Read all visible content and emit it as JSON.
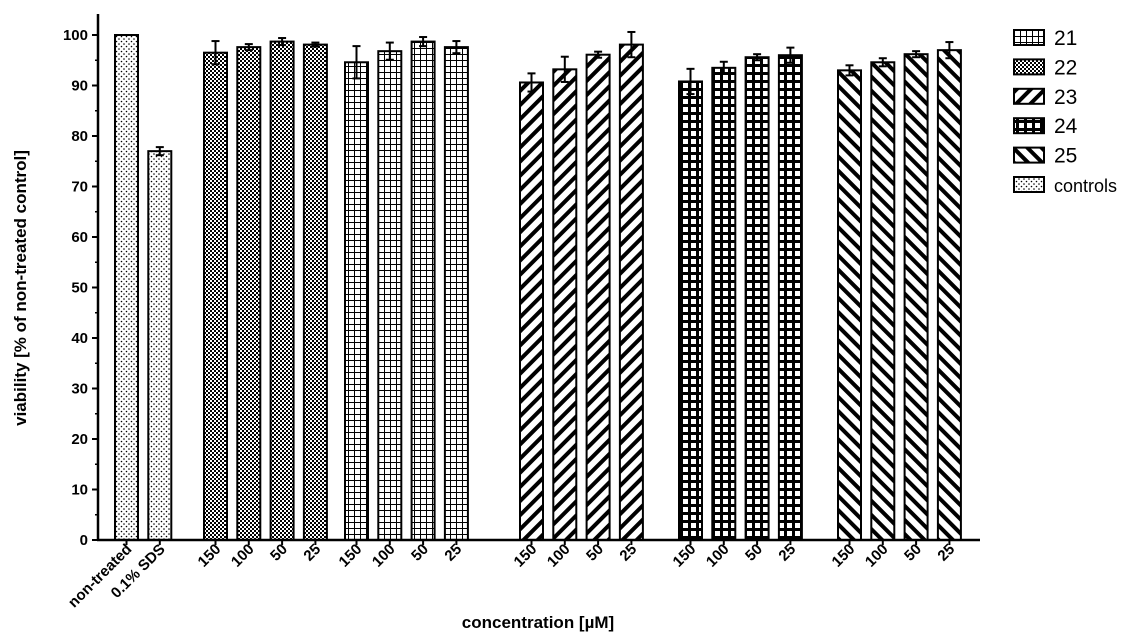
{
  "chart_data": {
    "type": "bar",
    "xlabel": "concentration [µM]",
    "ylabel": "viability [% of non-treated control]",
    "ylim": [
      0,
      105
    ],
    "yticks": [
      0,
      10,
      20,
      30,
      40,
      50,
      60,
      70,
      80,
      90,
      100
    ],
    "grid": false,
    "legend_position": "top-right",
    "legend": [
      {
        "name": "21",
        "pattern": "grid-fine"
      },
      {
        "name": "22",
        "pattern": "checker"
      },
      {
        "name": "23",
        "pattern": "diag-back"
      },
      {
        "name": "24",
        "pattern": "grid-bold"
      },
      {
        "name": "25",
        "pattern": "diag-fwd"
      },
      {
        "name": "controls",
        "pattern": "dots"
      }
    ],
    "groups": [
      {
        "series": "controls",
        "bars": [
          {
            "label": "non-treated",
            "value": 100,
            "error": 0
          },
          {
            "label": "0.1% SDS",
            "value": 77,
            "error": 0.8
          }
        ]
      },
      {
        "series": "22",
        "bars": [
          {
            "label": "150",
            "value": 96.5,
            "error": 2.3
          },
          {
            "label": "100",
            "value": 97.6,
            "error": 0.6
          },
          {
            "label": "50",
            "value": 98.7,
            "error": 0.7
          },
          {
            "label": "25",
            "value": 98.1,
            "error": 0.4
          }
        ]
      },
      {
        "series": "21",
        "bars": [
          {
            "label": "150",
            "value": 94.6,
            "error": 3.2
          },
          {
            "label": "100",
            "value": 96.8,
            "error": 1.7
          },
          {
            "label": "50",
            "value": 98.7,
            "error": 0.9
          },
          {
            "label": "25",
            "value": 97.6,
            "error": 1.2
          }
        ]
      },
      {
        "series": "23",
        "bars": [
          {
            "label": "150",
            "value": 90.6,
            "error": 1.8
          },
          {
            "label": "100",
            "value": 93.2,
            "error": 2.5
          },
          {
            "label": "50",
            "value": 96.1,
            "error": 0.6
          },
          {
            "label": "25",
            "value": 98.1,
            "error": 2.5
          }
        ]
      },
      {
        "series": "24",
        "bars": [
          {
            "label": "150",
            "value": 90.8,
            "error": 2.5
          },
          {
            "label": "100",
            "value": 93.5,
            "error": 1.2
          },
          {
            "label": "50",
            "value": 95.6,
            "error": 0.6
          },
          {
            "label": "25",
            "value": 96,
            "error": 1.5
          }
        ]
      },
      {
        "series": "25",
        "bars": [
          {
            "label": "150",
            "value": 93,
            "error": 1
          },
          {
            "label": "100",
            "value": 94.6,
            "error": 0.8
          },
          {
            "label": "50",
            "value": 96.2,
            "error": 0.6
          },
          {
            "label": "25",
            "value": 97,
            "error": 1.6
          }
        ]
      }
    ]
  }
}
